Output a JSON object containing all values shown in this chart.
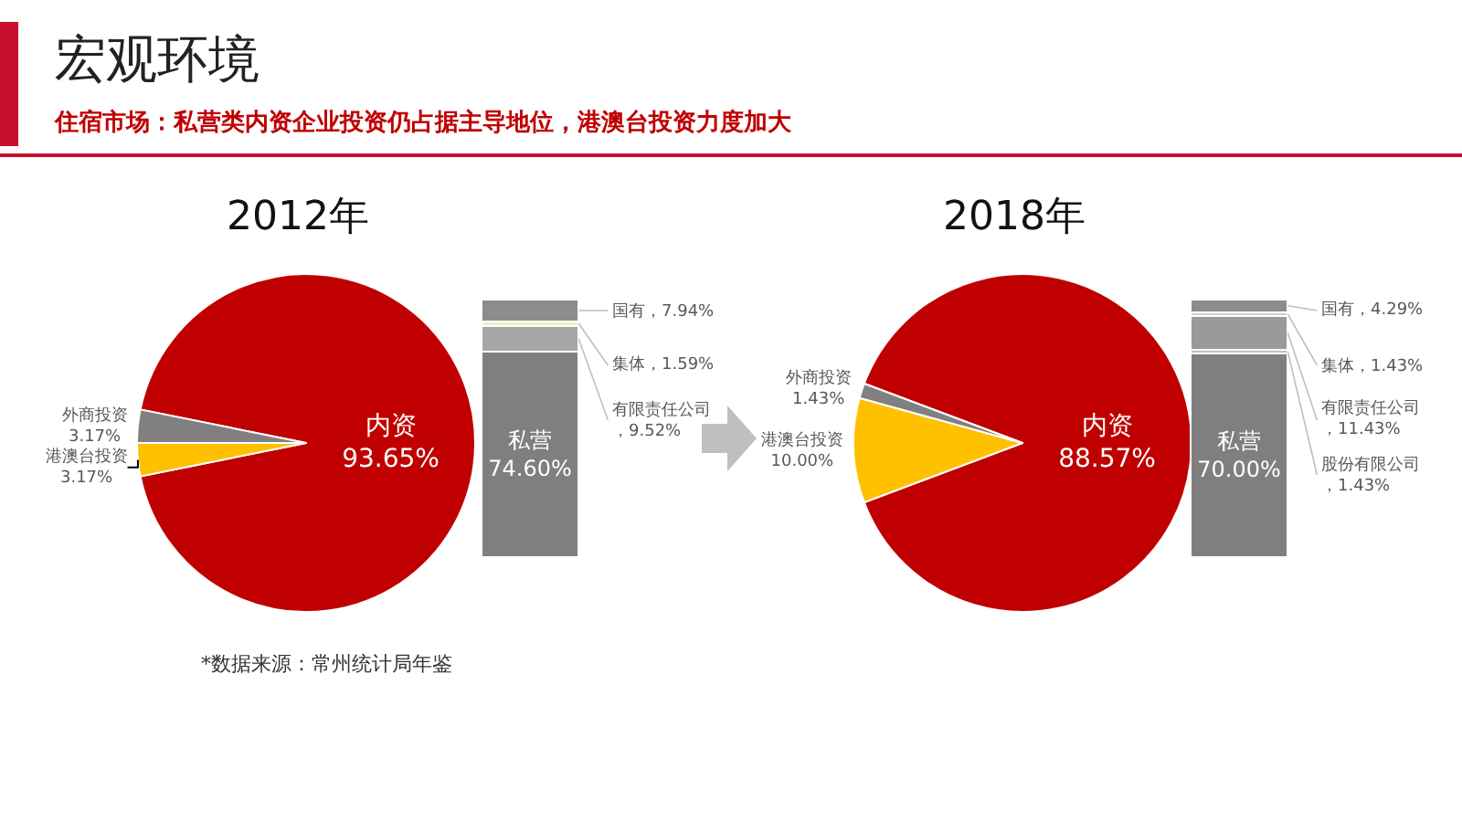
{
  "chart_data": [
    {
      "type": "other",
      "title": "宏观环境",
      "subtitle": "住宿市场：私营类内资企业投资仍占据主导地位，港澳台投资力度加大",
      "annotations": [
        "*数据来源：常州统计局年鉴"
      ]
    },
    {
      "type": "pie",
      "title": "2012年",
      "categories": [
        "内资",
        "港澳台投资",
        "外商投资"
      ],
      "values": [
        93.65,
        3.17,
        3.17
      ],
      "value_labels": [
        "93.65%",
        "3.17%",
        "3.17%"
      ],
      "colors": [
        "#c00000",
        "#ffc000",
        "#808080"
      ]
    },
    {
      "type": "bar",
      "stacked": true,
      "categories": [
        null
      ],
      "series": [
        {
          "name": "私营",
          "color": "#7f7f7f",
          "values": [
            74.6
          ],
          "value_labels": [
            "74.60%"
          ]
        },
        {
          "name": "有限责任公司",
          "color": "#a6a6a6",
          "values": [
            9.52
          ],
          "value_labels": [
            "，9.52%"
          ]
        },
        {
          "name": "集体",
          "color": "#f2f0c0",
          "values": [
            1.59
          ],
          "value_labels": [
            "，1.59%"
          ]
        },
        {
          "name": "国有",
          "color": "#8c8c8c",
          "values": [
            7.94
          ],
          "value_labels": [
            "，7.94%"
          ]
        }
      ]
    },
    {
      "type": "pie",
      "title": "2018年",
      "categories": [
        "内资",
        "港澳台投资",
        "外商投资"
      ],
      "values": [
        88.57,
        10.0,
        1.43
      ],
      "value_labels": [
        "88.57%",
        "10.00%",
        "1.43%"
      ],
      "colors": [
        "#c00000",
        "#ffc000",
        "#808080"
      ]
    },
    {
      "type": "bar",
      "stacked": true,
      "categories": [
        null
      ],
      "series": [
        {
          "name": "私营",
          "color": "#7f7f7f",
          "values": [
            70.0
          ],
          "value_labels": [
            "70.00%"
          ]
        },
        {
          "name": "股份有限公司",
          "color": "#bfbfbf",
          "values": [
            1.43
          ],
          "value_labels": [
            "，1.43%"
          ]
        },
        {
          "name": "有限责任公司",
          "color": "#9a9a9a",
          "values": [
            11.43
          ],
          "value_labels": [
            "，11.43%"
          ]
        },
        {
          "name": "集体",
          "color": "#d0d0d0",
          "values": [
            1.43
          ],
          "value_labels": [
            "，1.43%"
          ]
        },
        {
          "name": "国有",
          "color": "#8c8c8c",
          "values": [
            4.29
          ],
          "value_labels": [
            "，4.29%"
          ]
        }
      ]
    }
  ]
}
